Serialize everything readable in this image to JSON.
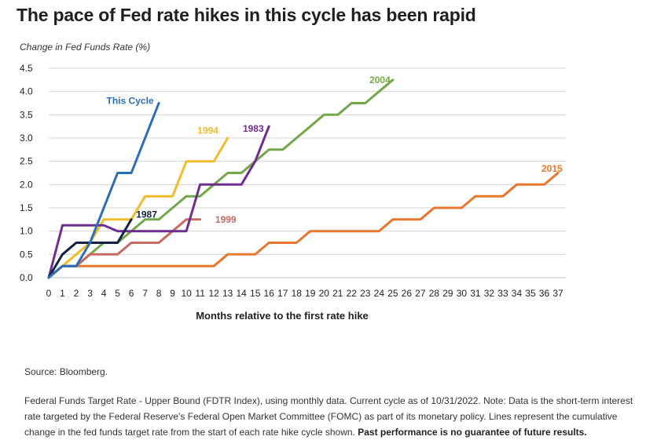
{
  "title": "The pace of Fed rate hikes in this cycle has been rapid",
  "source": "Source: Bloomberg.",
  "note_text": "Federal Funds Target Rate - Upper Bound (FDTR Index), using monthly data. Current cycle as of 10/31/2022. Note: Data is the short-term interest rate targeted by the Federal Reserve's Federal Open Market Committee (FOMC) as part of its monetary policy. Lines represent the cumulative change in the fed funds target rate from the start of each rate hike cycle shown.",
  "note_bold": "Past performance is no guarantee of future results.",
  "chart_data": {
    "type": "line",
    "ylabel": "Change in Fed Funds Rate (%)",
    "xlabel": "Months relative to the first rate hike",
    "xlim": [
      0,
      37
    ],
    "ylim": [
      0,
      4.5
    ],
    "x_ticks": [
      0,
      1,
      2,
      3,
      4,
      5,
      6,
      7,
      8,
      9,
      10,
      11,
      12,
      13,
      14,
      15,
      16,
      17,
      18,
      19,
      20,
      21,
      22,
      23,
      24,
      25,
      26,
      27,
      28,
      29,
      30,
      31,
      32,
      33,
      34,
      35,
      36,
      37
    ],
    "y_ticks": [
      "0.0",
      "0.5",
      "1.0",
      "1.5",
      "2.0",
      "2.5",
      "3.0",
      "3.5",
      "4.0",
      "4.5"
    ],
    "grid": true,
    "series": [
      {
        "name": "2015",
        "color": "#e8772e",
        "label_at": [
          35.8,
          2.34
        ],
        "x": [
          0,
          1,
          2,
          3,
          4,
          5,
          6,
          7,
          8,
          9,
          10,
          11,
          12,
          13,
          14,
          15,
          16,
          17,
          18,
          19,
          20,
          21,
          22,
          23,
          24,
          25,
          26,
          27,
          28,
          29,
          30,
          31,
          32,
          33,
          34,
          35,
          36,
          37
        ],
        "y": [
          0,
          0.25,
          0.25,
          0.25,
          0.25,
          0.25,
          0.25,
          0.25,
          0.25,
          0.25,
          0.25,
          0.25,
          0.25,
          0.5,
          0.5,
          0.5,
          0.75,
          0.75,
          0.75,
          1.0,
          1.0,
          1.0,
          1.0,
          1.0,
          1.0,
          1.25,
          1.25,
          1.25,
          1.5,
          1.5,
          1.5,
          1.75,
          1.75,
          1.75,
          2.0,
          2.0,
          2.0,
          2.25
        ]
      },
      {
        "name": "2004",
        "color": "#72a84a",
        "label_at": [
          23.3,
          4.25
        ],
        "x": [
          0,
          1,
          2,
          3,
          4,
          5,
          6,
          7,
          8,
          9,
          10,
          11,
          12,
          13,
          14,
          15,
          16,
          17,
          18,
          19,
          20,
          21,
          22,
          23,
          24,
          25
        ],
        "y": [
          0,
          0.25,
          0.25,
          0.5,
          0.75,
          0.75,
          1.0,
          1.25,
          1.25,
          1.5,
          1.75,
          1.75,
          2.0,
          2.25,
          2.25,
          2.5,
          2.75,
          2.75,
          3.0,
          3.25,
          3.5,
          3.5,
          3.75,
          3.75,
          4.0,
          4.25
        ]
      },
      {
        "name": "1999",
        "color": "#c76b62",
        "label_at": [
          12.1,
          1.25
        ],
        "x": [
          0,
          1,
          2,
          3,
          4,
          5,
          6,
          7,
          8,
          9,
          10,
          11
        ],
        "y": [
          0,
          0.25,
          0.25,
          0.5,
          0.5,
          0.5,
          0.75,
          0.75,
          0.75,
          1.0,
          1.25,
          1.25
        ]
      },
      {
        "name": "1994",
        "color": "#f2bd2c",
        "label_at": [
          10.8,
          3.16
        ],
        "x": [
          0,
          1,
          2,
          3,
          4,
          5,
          6,
          7,
          8,
          9,
          10,
          11,
          12,
          13
        ],
        "y": [
          0,
          0.25,
          0.5,
          0.75,
          1.25,
          1.25,
          1.25,
          1.75,
          1.75,
          1.75,
          2.5,
          2.5,
          2.5,
          3.0
        ]
      },
      {
        "name": "1983",
        "color": "#6d2e8f",
        "label_at": [
          14.1,
          3.2
        ],
        "x": [
          0,
          1,
          2,
          3,
          4,
          5,
          6,
          7,
          8,
          9,
          10,
          11,
          12,
          13,
          14,
          15,
          16
        ],
        "y": [
          0,
          1.125,
          1.125,
          1.125,
          1.125,
          1.0,
          1.0,
          1.0,
          1.0,
          1.0,
          1.0,
          2.0,
          2.0,
          2.0,
          2.0,
          2.5,
          3.25
        ]
      },
      {
        "name": "1987",
        "color": "#122244",
        "label_at": [
          6.35,
          1.36
        ],
        "x": [
          0,
          1,
          2,
          3,
          4,
          5,
          6
        ],
        "y": [
          0,
          0.5,
          0.75,
          0.75,
          0.75,
          0.75,
          1.25
        ]
      },
      {
        "name": "This Cycle",
        "color": "#2a6fb6",
        "label_at": [
          4.2,
          3.8
        ],
        "x": [
          0,
          1,
          2,
          3,
          4,
          5,
          6,
          7,
          8
        ],
        "y": [
          0,
          0.25,
          0.25,
          0.75,
          1.5,
          2.25,
          2.25,
          3.0,
          3.75
        ]
      }
    ]
  }
}
